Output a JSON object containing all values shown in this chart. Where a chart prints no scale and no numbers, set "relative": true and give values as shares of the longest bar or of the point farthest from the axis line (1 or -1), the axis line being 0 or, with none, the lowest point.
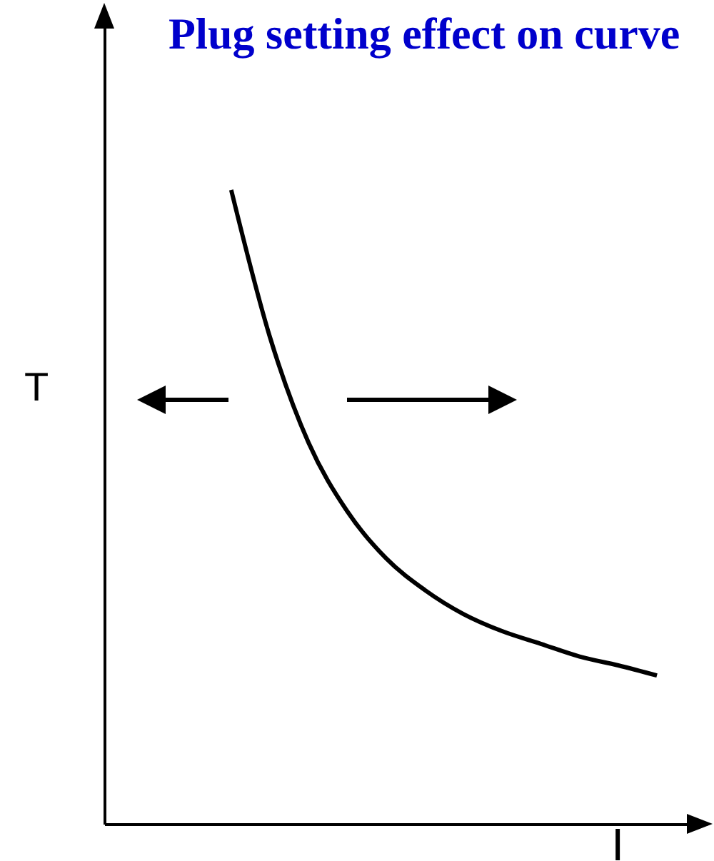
{
  "chart_data": {
    "type": "line",
    "title": "Plug setting effect on curve",
    "xlabel": "I",
    "ylabel": "T",
    "relative": true,
    "grid": false,
    "marker": "none",
    "line_style": "solid",
    "categories": [
      null,
      null,
      null,
      null,
      null,
      null,
      null,
      null,
      null,
      null,
      null,
      null
    ],
    "series": [
      {
        "color": "#000000",
        "values": [
          1,
          0.768,
          0.601,
          0.493,
          0.419,
          0.369,
          0.331,
          0.304,
          0.284,
          0.264,
          0.25,
          0.234
        ]
      }
    ]
  }
}
